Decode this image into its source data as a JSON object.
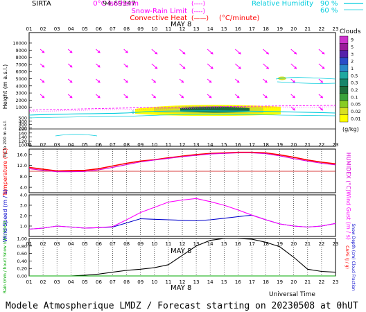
{
  "header": {
    "site": "SIRTA",
    "code": "94.69347",
    "legend": [
      {
        "label": "0°C isotherm",
        "sample": "(----)",
        "color": "#ff00ff"
      },
      {
        "label": "Snow-Rain Limit",
        "sample": "(----)",
        "color": "#ff00ff"
      },
      {
        "label": "Convective Heat",
        "sample": "(——)",
        "color": "#ff0000",
        "unit": "(°C/minute)"
      }
    ],
    "humidity": [
      {
        "label": "Relative Humidity",
        "value": "90 %",
        "color": "#00ccdd"
      },
      {
        "label": "",
        "value": "60 %",
        "color": "#00ccdd"
      }
    ]
  },
  "time_axis": {
    "hours": [
      "01",
      "02",
      "03",
      "04",
      "05",
      "06",
      "07",
      "08",
      "09",
      "10",
      "11",
      "12",
      "13",
      "14",
      "15",
      "16",
      "17",
      "18",
      "19",
      "20",
      "21",
      "22",
      "23"
    ],
    "date_label": "MAY  8",
    "title": "Universal Time"
  },
  "footer": "Modele Atmospherique LMDZ / Forecast starting on 20230508 at 0hUT",
  "colors": {
    "temp": "#ff0000",
    "humidex": "#dd00dd",
    "wind": "#0000cc",
    "gust": "#ff00ff",
    "rain": "#00aa00",
    "snow": "#0000ff",
    "cloudfrac": "#000000",
    "cape": "#ff0000"
  },
  "chart_data": [
    {
      "type": "heatmap",
      "name": "cloud-height",
      "ylabel": "Height  (m a.s.l.)",
      "ylabel2": "Up to 200 m a.s.l.",
      "yticks": [
        "10000",
        "9000",
        "8000",
        "7000",
        "6000",
        "5000",
        "4000",
        "3000",
        "2000",
        "1000",
        "500",
        "400",
        "300",
        "200",
        "180",
        "160",
        "140",
        "120",
        "100"
      ],
      "isotherm_label": "0",
      "colorbar": {
        "title": "Clouds",
        "unit": "(g/kg)",
        "levels": [
          "9",
          "5",
          "3",
          "2",
          "1",
          "0.5",
          "0.3",
          "0.2",
          "0.1",
          "0.05",
          "0.02",
          "0.01"
        ],
        "colors": [
          "#cc33cc",
          "#9a1a9a",
          "#5522aa",
          "#2a4dc8",
          "#2a88c8",
          "#1fa8a0",
          "#17866a",
          "#1d6e3a",
          "#3aa23a",
          "#88cc22",
          "#d8e022",
          "#ffff00"
        ]
      }
    },
    {
      "type": "line",
      "name": "temperature",
      "ylabel": "Temperature (°C)",
      "ylabel2": "HUMIDEX (°C)",
      "yticks": [
        "16.0",
        "12.0",
        "8.0",
        "4.0"
      ],
      "ylim": [
        2.0,
        18.0
      ],
      "series": [
        {
          "key": "temp",
          "values": [
            11.3,
            10.6,
            10.0,
            10.1,
            10.2,
            10.8,
            11.8,
            12.8,
            13.6,
            14.1,
            14.8,
            15.4,
            16.0,
            16.4,
            16.6,
            16.8,
            16.8,
            16.6,
            15.9,
            15.0,
            14.0,
            13.2,
            12.6
          ]
        },
        {
          "key": "humidex",
          "values": [
            10.8,
            10.2,
            9.7,
            9.7,
            9.8,
            10.4,
            11.3,
            12.3,
            13.3,
            14.0,
            14.6,
            15.2,
            15.7,
            16.2,
            16.4,
            16.6,
            16.6,
            16.3,
            15.5,
            14.5,
            13.6,
            12.8,
            12.2
          ]
        }
      ]
    },
    {
      "type": "line",
      "name": "wind",
      "ylabel": "Wind Speed (m / s)",
      "ylabel2": "Wind Gust (m / s)",
      "yticks": [
        "4.0",
        "3.0",
        "2.0",
        "1.0"
      ],
      "ylim": [
        0.0,
        4.0
      ],
      "series": [
        {
          "key": "wind",
          "values": [
            0.7,
            0.8,
            1.0,
            0.9,
            0.8,
            0.85,
            0.9,
            1.3,
            1.7,
            1.65,
            1.6,
            1.55,
            1.5,
            1.6,
            1.75,
            1.9,
            2.05,
            1.6,
            1.2,
            1.0,
            0.9,
            1.0,
            1.25
          ]
        },
        {
          "key": "gust",
          "values": [
            0.7,
            0.8,
            1.0,
            0.9,
            0.8,
            0.85,
            0.95,
            1.6,
            2.3,
            2.8,
            3.3,
            3.5,
            3.65,
            3.35,
            3.0,
            2.55,
            2.05,
            1.6,
            1.2,
            1.0,
            0.9,
            1.0,
            1.25
          ]
        }
      ]
    },
    {
      "type": "line",
      "name": "precipitation",
      "ylabel": "Rain (mm / hour) Snow (cm / hour)",
      "ylabel2": "Snow Depth (cm) Cloud Fraction",
      "ylabel3": "CAPE (J / g)",
      "yticks": [
        "1.00",
        "0.80",
        "0.60",
        "0.40",
        "0.20",
        "0.00"
      ],
      "ylim": [
        0.0,
        1.0
      ],
      "series": [
        {
          "key": "cloudfrac",
          "values": [
            0.0,
            0.0,
            0.0,
            0.0,
            0.02,
            0.05,
            0.1,
            0.15,
            0.18,
            0.22,
            0.3,
            0.55,
            0.8,
            0.95,
            1.0,
            1.0,
            0.98,
            0.9,
            0.78,
            0.5,
            0.18,
            0.12,
            0.1
          ]
        },
        {
          "key": "rain",
          "values": [
            0,
            0,
            0,
            0,
            0,
            0,
            0,
            0,
            0,
            0,
            0,
            0,
            0,
            0,
            0,
            0,
            0,
            0,
            0,
            0,
            0,
            0,
            0
          ]
        }
      ]
    }
  ]
}
